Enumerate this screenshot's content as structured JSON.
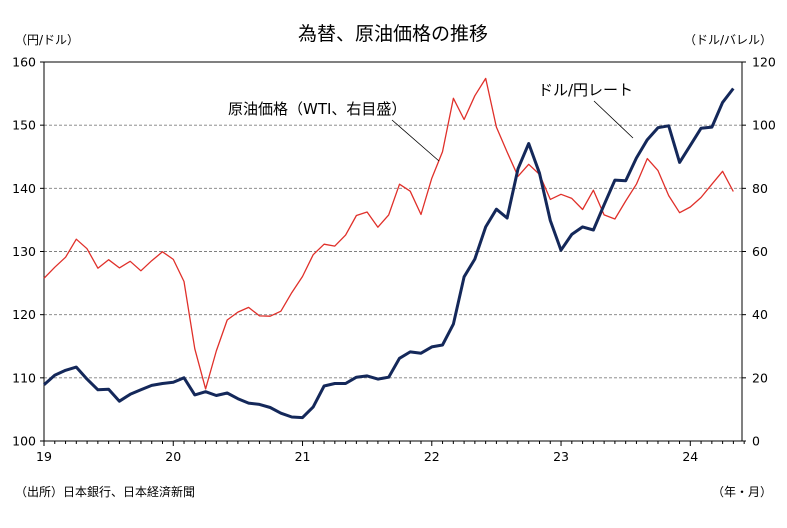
{
  "chart_data": {
    "type": "line",
    "title": "為替、原油価格の推移",
    "left_unit": "（円/ドル）",
    "right_unit": "（ドル/バレル）",
    "x_unit": "（年・月）",
    "source": "（出所）日本銀行、日本経済新聞",
    "x_tick_labels": [
      "19",
      "20",
      "21",
      "22",
      "23",
      "24"
    ],
    "x_range": [
      2019.0,
      2024.4
    ],
    "y_left": {
      "ticks": [
        "100",
        "110",
        "120",
        "130",
        "140",
        "150",
        "160"
      ],
      "min": 100,
      "max": 160
    },
    "y_right": {
      "ticks": [
        "0",
        "20",
        "40",
        "60",
        "80",
        "100",
        "120"
      ],
      "min": 0,
      "max": 120
    },
    "grid": "horizontal-dashed",
    "series": [
      {
        "name": "ドル/円レート",
        "axis": "left",
        "color": "#14285a",
        "x": [
          2019.0,
          2019.083,
          2019.167,
          2019.25,
          2019.333,
          2019.417,
          2019.5,
          2019.583,
          2019.667,
          2019.75,
          2019.833,
          2019.917,
          2020.0,
          2020.083,
          2020.167,
          2020.25,
          2020.333,
          2020.417,
          2020.5,
          2020.583,
          2020.667,
          2020.75,
          2020.833,
          2020.917,
          2021.0,
          2021.083,
          2021.167,
          2021.25,
          2021.333,
          2021.417,
          2021.5,
          2021.583,
          2021.667,
          2021.75,
          2021.833,
          2021.917,
          2022.0,
          2022.083,
          2022.167,
          2022.25,
          2022.333,
          2022.417,
          2022.5,
          2022.583,
          2022.667,
          2022.75,
          2022.833,
          2022.917,
          2023.0,
          2023.083,
          2023.167,
          2023.25,
          2023.333,
          2023.417,
          2023.5,
          2023.583,
          2023.667,
          2023.75,
          2023.833,
          2023.917,
          2024.0,
          2024.083,
          2024.167,
          2024.25,
          2024.333
        ],
        "values": [
          108.9,
          110.4,
          111.2,
          111.7,
          109.8,
          108.1,
          108.2,
          106.3,
          107.4,
          108.1,
          108.8,
          109.1,
          109.3,
          110.0,
          107.3,
          107.8,
          107.2,
          107.6,
          106.7,
          106.0,
          105.8,
          105.3,
          104.4,
          103.8,
          103.7,
          105.4,
          108.7,
          109.1,
          109.1,
          110.1,
          110.3,
          109.8,
          110.1,
          113.1,
          114.1,
          113.9,
          114.9,
          115.2,
          118.5,
          126.0,
          128.8,
          133.9,
          136.7,
          135.3,
          143.1,
          147.1,
          142.4,
          134.9,
          130.2,
          132.7,
          133.9,
          133.4,
          137.4,
          141.3,
          141.2,
          144.8,
          147.7,
          149.6,
          149.9,
          144.1,
          146.8,
          149.5,
          149.7,
          153.6,
          155.8
        ]
      },
      {
        "name": "原油価格（WTI、右目盛）",
        "axis": "right",
        "color": "#e0302a",
        "x": [
          2019.0,
          2019.083,
          2019.167,
          2019.25,
          2019.333,
          2019.417,
          2019.5,
          2019.583,
          2019.667,
          2019.75,
          2019.833,
          2019.917,
          2020.0,
          2020.083,
          2020.167,
          2020.25,
          2020.333,
          2020.417,
          2020.5,
          2020.583,
          2020.667,
          2020.75,
          2020.833,
          2020.917,
          2021.0,
          2021.083,
          2021.167,
          2021.25,
          2021.333,
          2021.417,
          2021.5,
          2021.583,
          2021.667,
          2021.75,
          2021.833,
          2021.917,
          2022.0,
          2022.083,
          2022.167,
          2022.25,
          2022.333,
          2022.417,
          2022.5,
          2022.583,
          2022.667,
          2022.75,
          2022.833,
          2022.917,
          2023.0,
          2023.083,
          2023.167,
          2023.25,
          2023.333,
          2023.417,
          2023.5,
          2023.583,
          2023.667,
          2023.75,
          2023.833,
          2023.917,
          2024.0,
          2024.083,
          2024.167,
          2024.25,
          2024.333
        ],
        "values": [
          51.5,
          55.0,
          58.2,
          63.9,
          60.9,
          54.7,
          57.4,
          54.8,
          56.9,
          53.9,
          57.1,
          59.9,
          57.5,
          50.5,
          29.2,
          16.5,
          28.5,
          38.3,
          40.8,
          42.3,
          39.6,
          39.5,
          41.1,
          47.0,
          52.1,
          59.0,
          62.3,
          61.7,
          65.2,
          71.4,
          72.5,
          67.7,
          71.6,
          81.3,
          79.1,
          71.7,
          83.2,
          91.6,
          108.5,
          101.8,
          109.3,
          114.8,
          99.4,
          91.5,
          83.8,
          87.6,
          84.4,
          76.5,
          78.1,
          76.8,
          73.3,
          79.4,
          71.6,
          70.3,
          76.0,
          81.3,
          89.4,
          85.6,
          77.7,
          72.3,
          74.1,
          77.1,
          81.3,
          85.4,
          79.0
        ]
      }
    ],
    "annotations": [
      {
        "text": "原油価格（WTI、右目盛）",
        "series": 1
      },
      {
        "text": "ドル/円レート",
        "series": 0
      }
    ]
  }
}
